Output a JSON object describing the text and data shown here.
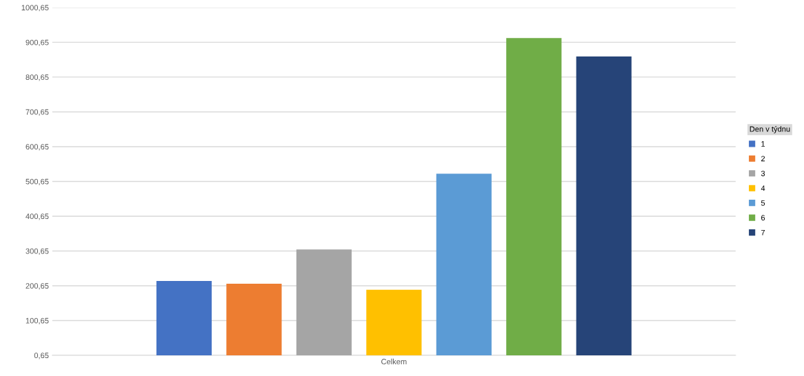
{
  "chart_data": {
    "type": "bar",
    "categories": [
      "Celkem"
    ],
    "legend_title": "Den v týdnu",
    "legend": "right",
    "grid": "y",
    "ylim": [
      0.65,
      1000.65
    ],
    "yticks": [
      {
        "value": 0.65,
        "label": "0,65"
      },
      {
        "value": 100.65,
        "label": "100,65"
      },
      {
        "value": 200.65,
        "label": "200,65"
      },
      {
        "value": 300.65,
        "label": "300,65"
      },
      {
        "value": 400.65,
        "label": "400,65"
      },
      {
        "value": 500.65,
        "label": "500,65"
      },
      {
        "value": 600.65,
        "label": "600,65"
      },
      {
        "value": 700.65,
        "label": "700,65"
      },
      {
        "value": 800.65,
        "label": "800,65"
      },
      {
        "value": 900.65,
        "label": "900,65"
      },
      {
        "value": 1000.65,
        "label": "1000,65"
      }
    ],
    "series": [
      {
        "name": "1",
        "color": "#4472c4",
        "values": [
          214.5
        ]
      },
      {
        "name": "2",
        "color": "#ed7d31",
        "values": [
          206.6
        ]
      },
      {
        "name": "3",
        "color": "#a5a5a5",
        "values": [
          305
        ]
      },
      {
        "name": "4",
        "color": "#ffc000",
        "values": [
          189
        ]
      },
      {
        "name": "5",
        "color": "#5b9bd5",
        "values": [
          523
        ]
      },
      {
        "name": "6",
        "color": "#70ad47",
        "values": [
          913
        ]
      },
      {
        "name": "7",
        "color": "#264478",
        "values": [
          860
        ]
      }
    ]
  }
}
